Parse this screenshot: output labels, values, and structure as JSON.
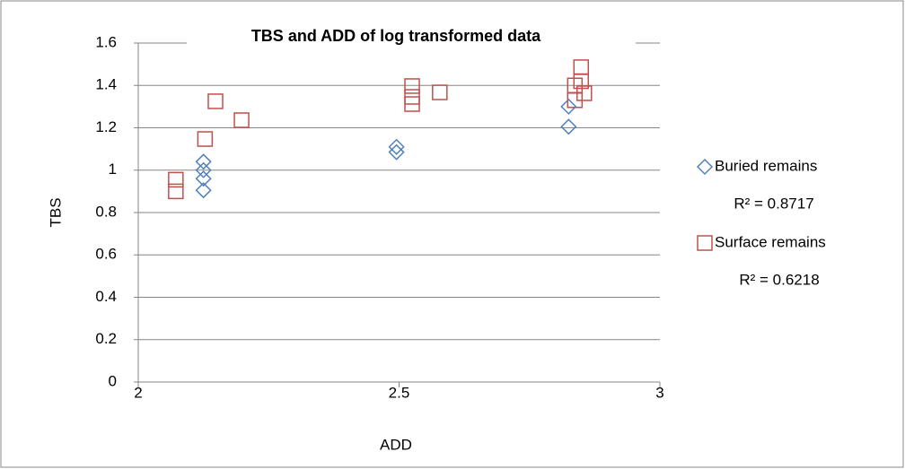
{
  "chart_data": {
    "type": "scatter",
    "title": "TBS and ADD of log transformed data",
    "x_label": "ADD",
    "y_label": "TBS",
    "xlim": [
      2,
      3
    ],
    "xticks": [
      2,
      2.5,
      3
    ],
    "ylim": [
      0,
      1.6
    ],
    "yticks": [
      0,
      0.2,
      0.4,
      0.6,
      0.8,
      1,
      1.2,
      1.4,
      1.6
    ],
    "grid": true,
    "legend": "right",
    "series": [
      {
        "name": "Buried remains",
        "color": "#4f81bd",
        "marker": "diamond",
        "r2_label": "R² = 0.8717",
        "x": [
          2.125,
          2.125,
          2.125,
          2.125,
          2.495,
          2.495,
          2.825,
          2.825
        ],
        "values": [
          1.04,
          1.0,
          0.96,
          0.905,
          1.11,
          1.085,
          1.3,
          1.205
        ]
      },
      {
        "name": "Surface remains",
        "color": "#c0504d",
        "marker": "square",
        "r2_label": "R² = 0.6218",
        "x": [
          2.072,
          2.072,
          2.128,
          2.148,
          2.198,
          2.525,
          2.525,
          2.525,
          2.578,
          2.837,
          2.837,
          2.849,
          2.849,
          2.855
        ],
        "values": [
          0.955,
          0.9,
          1.147,
          1.325,
          1.236,
          1.397,
          1.346,
          1.312,
          1.367,
          1.4,
          1.33,
          1.486,
          1.42,
          1.363
        ]
      }
    ]
  }
}
